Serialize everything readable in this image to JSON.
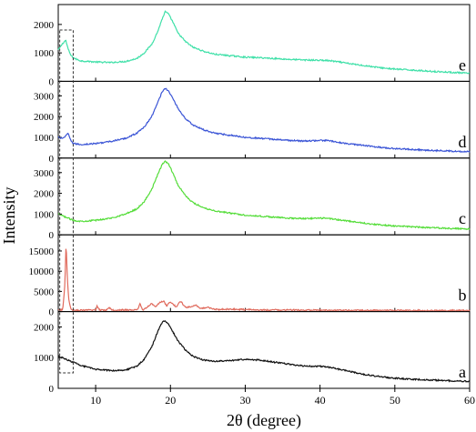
{
  "chart_data": {
    "type": "line",
    "xlabel": "2θ (degree)",
    "ylabel": "Intensity",
    "xlim": [
      5,
      60
    ],
    "xticks": [
      10,
      20,
      30,
      40,
      50,
      60
    ],
    "shared_x_axis": true,
    "highlight_box": {
      "x_range": [
        5.2,
        7.0
      ],
      "style": "dashed"
    },
    "panels": [
      {
        "label": "e",
        "color": "#3fe0a8",
        "ylim": [
          0,
          2700
        ],
        "yticks": [
          0,
          1000,
          2000
        ],
        "x": [
          5,
          5.5,
          6,
          6.3,
          6.7,
          7.2,
          8,
          10,
          12,
          14,
          15.5,
          16.5,
          17.5,
          18.3,
          18.9,
          19.3,
          19.7,
          20.3,
          21,
          22,
          23,
          24.5,
          26,
          28,
          30,
          32,
          34,
          36,
          38,
          40,
          41,
          42,
          44,
          46,
          48,
          50,
          52,
          55,
          58,
          60
        ],
        "y": [
          1100,
          1300,
          1450,
          1150,
          900,
          800,
          720,
          680,
          660,
          700,
          800,
          1000,
          1300,
          1750,
          2200,
          2450,
          2380,
          2100,
          1700,
          1400,
          1200,
          1050,
          950,
          900,
          850,
          830,
          800,
          770,
          750,
          740,
          730,
          700,
          620,
          550,
          480,
          430,
          400,
          350,
          310,
          280
        ]
      },
      {
        "label": "d",
        "color": "#3b55d6",
        "ylim": [
          0,
          3700
        ],
        "yticks": [
          0,
          1000,
          2000,
          3000
        ],
        "x": [
          5,
          5.5,
          6,
          6.3,
          6.6,
          7,
          8,
          10,
          12,
          14,
          15.5,
          16.5,
          17.5,
          18.3,
          18.9,
          19.3,
          19.7,
          20.3,
          21,
          22,
          23,
          24.5,
          26,
          28,
          30,
          32,
          34,
          36,
          38,
          40,
          41,
          42,
          44,
          46,
          48,
          50,
          52,
          55,
          58,
          60
        ],
        "y": [
          1000,
          950,
          1050,
          1200,
          900,
          700,
          650,
          700,
          800,
          950,
          1200,
          1500,
          2000,
          2700,
          3200,
          3350,
          3250,
          2900,
          2400,
          1900,
          1600,
          1350,
          1200,
          1100,
          1000,
          950,
          900,
          850,
          820,
          850,
          850,
          780,
          680,
          600,
          520,
          460,
          420,
          370,
          330,
          310
        ]
      },
      {
        "label": "c",
        "color": "#55dd3a",
        "ylim": [
          0,
          3700
        ],
        "yticks": [
          0,
          1000,
          2000,
          3000
        ],
        "x": [
          5,
          6,
          7,
          8,
          10,
          12,
          14,
          15.5,
          16.5,
          17.5,
          18.3,
          18.9,
          19.3,
          19.7,
          20.3,
          21,
          22,
          23,
          24.5,
          26,
          28,
          30,
          32,
          34,
          36,
          38,
          40,
          41,
          42,
          44,
          46,
          48,
          50,
          52,
          55,
          58,
          60
        ],
        "y": [
          1000,
          850,
          700,
          650,
          700,
          800,
          1000,
          1250,
          1600,
          2200,
          2900,
          3400,
          3550,
          3450,
          3000,
          2400,
          1900,
          1550,
          1300,
          1150,
          1050,
          950,
          900,
          850,
          800,
          780,
          800,
          800,
          750,
          650,
          560,
          480,
          430,
          390,
          340,
          300,
          280
        ]
      },
      {
        "label": "b",
        "color": "#e06a5c",
        "ylim": [
          0,
          19000
        ],
        "yticks": [
          0,
          5000,
          10000,
          15000
        ],
        "x": [
          5,
          5.6,
          5.9,
          6.05,
          6.2,
          6.4,
          6.7,
          7,
          8,
          9,
          10,
          10.2,
          10.5,
          11.5,
          11.8,
          12.2,
          14,
          15.6,
          15.9,
          16.3,
          17,
          17.5,
          18,
          18.6,
          19.1,
          19.5,
          20,
          20.8,
          21.3,
          22,
          23.5,
          24,
          25,
          26,
          28,
          30,
          32,
          35,
          40,
          45,
          50,
          55,
          60
        ],
        "y": [
          300,
          500,
          7000,
          17500,
          9000,
          3000,
          600,
          300,
          300,
          350,
          400,
          1400,
          400,
          400,
          1100,
          400,
          400,
          400,
          2000,
          400,
          1200,
          2000,
          1300,
          2200,
          2600,
          1400,
          2400,
          1100,
          2700,
          1000,
          1500,
          700,
          1100,
          500,
          600,
          500,
          400,
          400,
          350,
          300,
          300,
          250,
          250
        ]
      },
      {
        "label": "a",
        "color": "#111111",
        "ylim": [
          0,
          2500
        ],
        "yticks": [
          0,
          1000,
          2000
        ],
        "x": [
          5,
          6,
          7,
          8,
          9,
          10,
          12,
          14,
          15.5,
          16.5,
          17.5,
          18.3,
          18.9,
          19.3,
          19.7,
          20.3,
          21,
          22,
          23,
          24,
          25,
          26,
          28,
          30,
          32,
          34,
          36,
          38,
          40,
          41,
          42,
          44,
          46,
          48,
          50,
          52,
          55,
          58,
          60
        ],
        "y": [
          1050,
          950,
          850,
          750,
          680,
          620,
          580,
          600,
          720,
          950,
          1350,
          1850,
          2150,
          2200,
          2100,
          1850,
          1550,
          1250,
          1050,
          950,
          900,
          880,
          900,
          950,
          920,
          850,
          780,
          720,
          720,
          700,
          650,
          550,
          450,
          380,
          330,
          300,
          270,
          240,
          230
        ]
      }
    ]
  }
}
